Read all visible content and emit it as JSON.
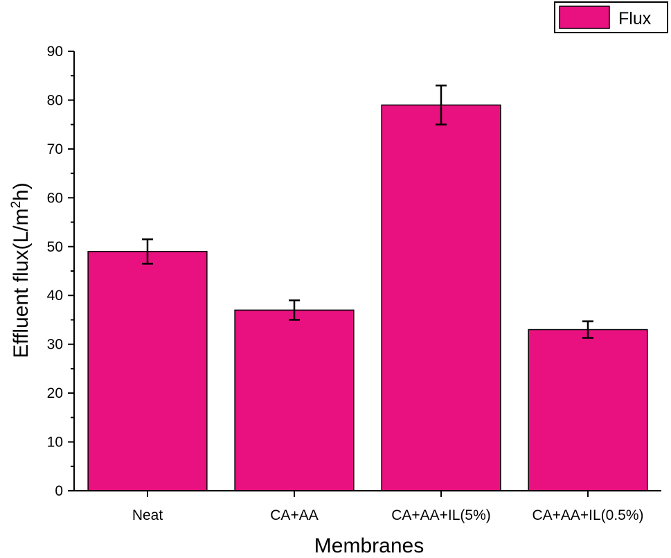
{
  "chart_data": {
    "type": "bar",
    "categories": [
      "Neat",
      "CA+AA",
      "CA+AA+IL(5%)",
      "CA+AA+IL(0.5%)"
    ],
    "series": [
      {
        "name": "Flux",
        "values": [
          49,
          37,
          79,
          33
        ],
        "errors": [
          2.5,
          2.0,
          4.0,
          1.7
        ]
      }
    ],
    "title": "",
    "xlabel": "Membranes",
    "ylabel_prefix": "Effluent flux(L/m",
    "ylabel_superscript": "2",
    "ylabel_suffix": "h)",
    "ylim": [
      0,
      90
    ],
    "yticks": [
      0,
      10,
      20,
      30,
      40,
      50,
      60,
      70,
      80,
      90
    ],
    "grid": false,
    "legend_position": "top-right",
    "bar_color": "#e8117f",
    "outline_color": "#000000"
  }
}
